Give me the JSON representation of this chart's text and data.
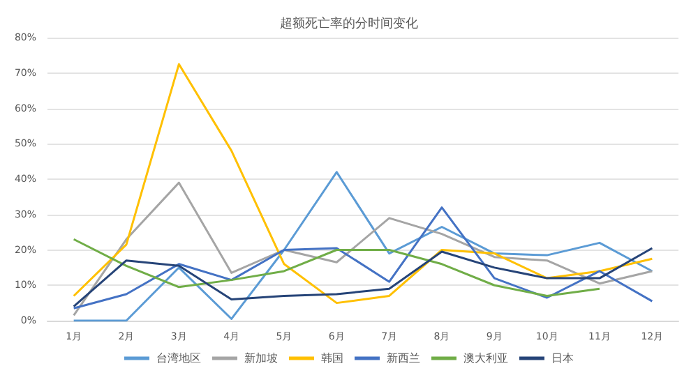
{
  "chart_data": {
    "type": "line",
    "title": "超额死亡率的分时间变化",
    "categories": [
      "1月",
      "2月",
      "3月",
      "4月",
      "5月",
      "6月",
      "7月",
      "8月",
      "9月",
      "10月",
      "11月",
      "12月"
    ],
    "series": [
      {
        "name": "台湾地区",
        "color": "#5b9bd5",
        "values": [
          0,
          0,
          15,
          0.5,
          20,
          42,
          19,
          26.5,
          19,
          18.5,
          22,
          14
        ]
      },
      {
        "name": "新加坡",
        "color": "#a5a5a5",
        "values": [
          1.5,
          23,
          39,
          13.5,
          20,
          16.5,
          29,
          24.5,
          18,
          17,
          10.5,
          14
        ]
      },
      {
        "name": "韩国",
        "color": "#ffc000",
        "values": [
          7,
          21.5,
          72.5,
          48,
          16,
          5,
          7,
          20,
          19,
          12,
          14,
          17.5
        ]
      },
      {
        "name": "新西兰",
        "color": "#4472c4",
        "values": [
          3.5,
          7.5,
          16,
          11.5,
          20,
          20.5,
          11,
          32,
          12,
          6.5,
          14,
          5.5
        ]
      },
      {
        "name": "澳大利亚",
        "color": "#70ad47",
        "values": [
          23,
          15.5,
          9.5,
          11.5,
          14,
          20,
          20,
          16,
          10,
          7,
          9,
          null
        ]
      },
      {
        "name": "日本",
        "color": "#264478",
        "values": [
          4,
          17,
          15.5,
          6,
          7,
          7.5,
          9,
          19.5,
          15,
          12,
          12,
          20.5
        ]
      }
    ],
    "ylim": [
      0,
      80
    ],
    "yticks": [
      {
        "value": 0,
        "label": "0%"
      },
      {
        "value": 10,
        "label": "10%"
      },
      {
        "value": 20,
        "label": "20%"
      },
      {
        "value": 30,
        "label": "30%"
      },
      {
        "value": 40,
        "label": "40%"
      },
      {
        "value": 50,
        "label": "50%"
      },
      {
        "value": 60,
        "label": "60%"
      },
      {
        "value": 70,
        "label": "70%"
      },
      {
        "value": 80,
        "label": "80%"
      }
    ],
    "grid": "y",
    "legend": "bottom",
    "marker": "none",
    "line_style": "solid"
  }
}
